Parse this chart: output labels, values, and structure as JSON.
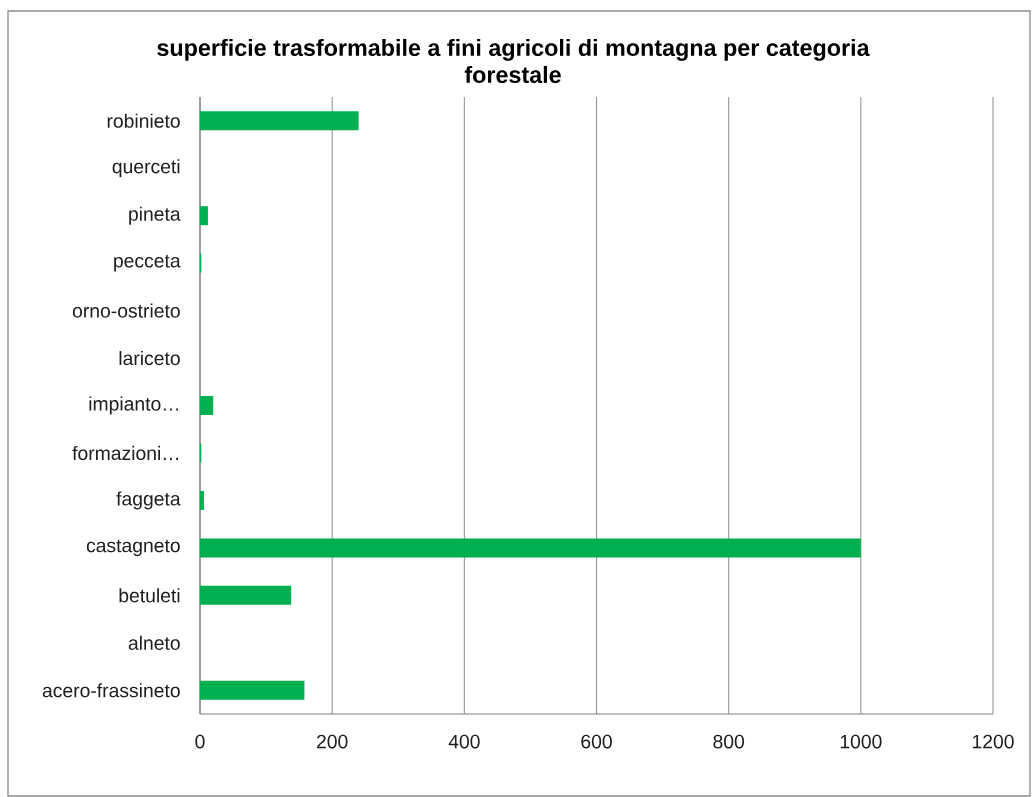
{
  "chart_data": {
    "type": "bar",
    "orientation": "horizontal",
    "title": "superficie trasformabile a fini agricoli di montagna per categoria forestale",
    "categories": [
      "robinieto",
      "querceti",
      "pineta",
      "pecceta",
      "orno-ostrieto",
      "lariceto",
      "impianto…",
      "formazioni…",
      "faggeta",
      "castagneto",
      "betuleti",
      "alneto",
      "acero-frassineto"
    ],
    "values": [
      240,
      0,
      12,
      2,
      0,
      0,
      20,
      2,
      6,
      1000,
      138,
      0,
      158
    ],
    "color": "#00b050",
    "xlim": [
      0,
      1200
    ],
    "xticks": [
      0,
      200,
      400,
      600,
      800,
      1000,
      1200
    ],
    "grid": "x"
  }
}
